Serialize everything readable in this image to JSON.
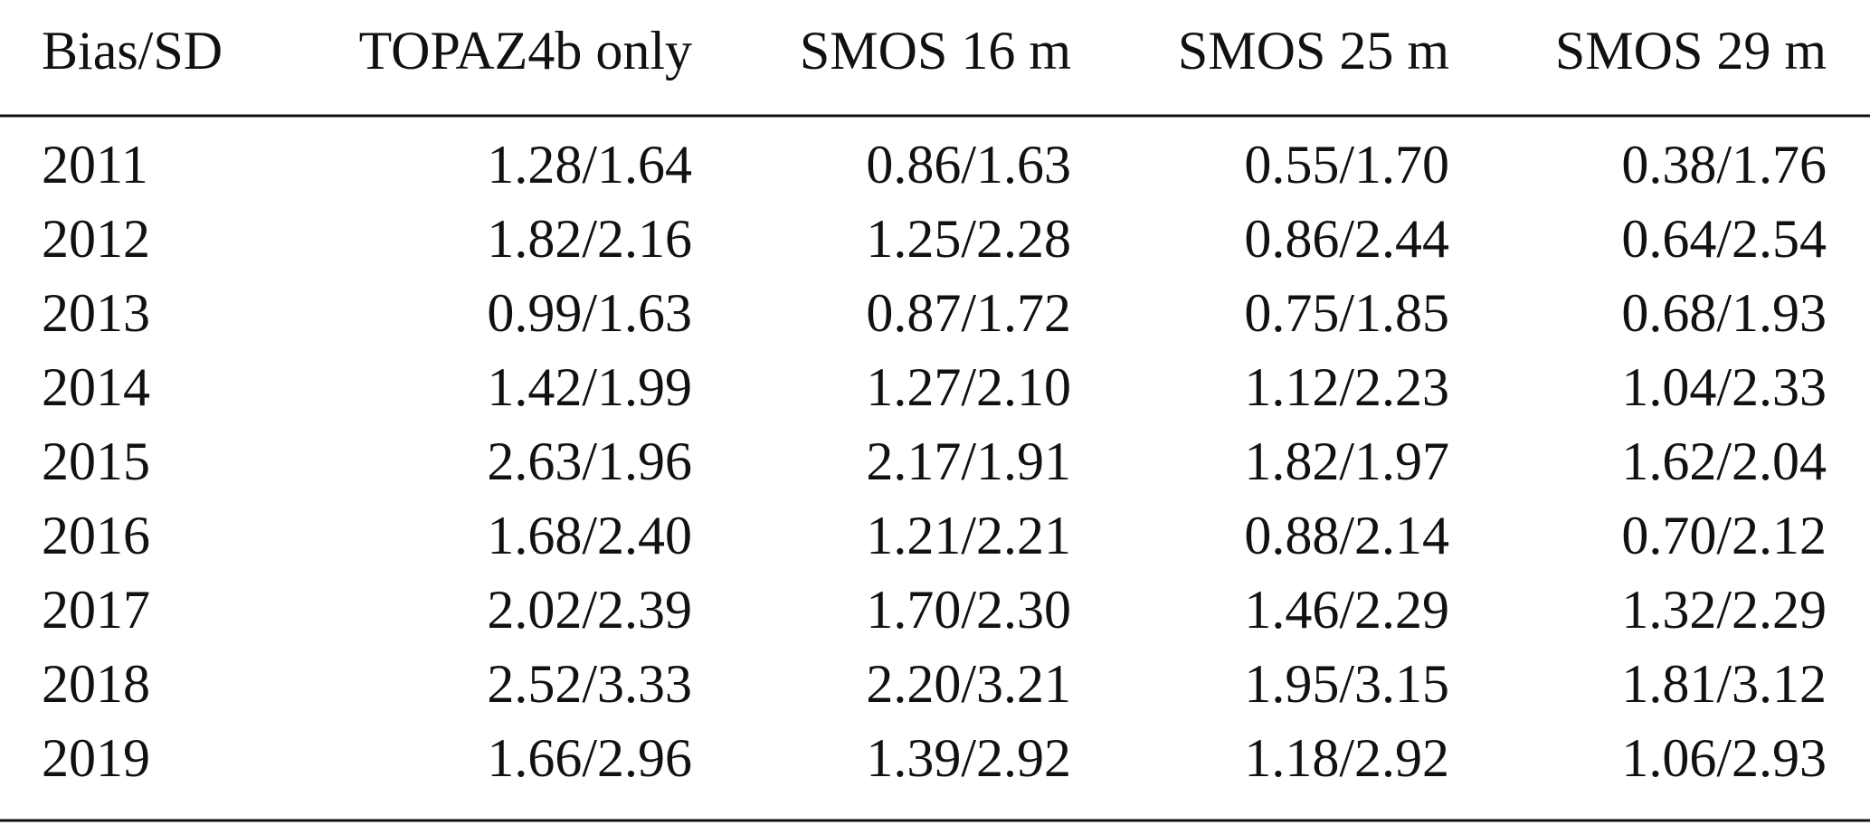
{
  "table": {
    "header": [
      "Bias/SD",
      "TOPAZ4b only",
      "SMOS 16 m",
      "SMOS 25 m",
      "SMOS 29 m"
    ],
    "rows": [
      [
        "2011",
        "1.28/1.64",
        "0.86/1.63",
        "0.55/1.70",
        "0.38/1.76"
      ],
      [
        "2012",
        "1.82/2.16",
        "1.25/2.28",
        "0.86/2.44",
        "0.64/2.54"
      ],
      [
        "2013",
        "0.99/1.63",
        "0.87/1.72",
        "0.75/1.85",
        "0.68/1.93"
      ],
      [
        "2014",
        "1.42/1.99",
        "1.27/2.10",
        "1.12/2.23",
        "1.04/2.33"
      ],
      [
        "2015",
        "2.63/1.96",
        "2.17/1.91",
        "1.82/1.97",
        "1.62/2.04"
      ],
      [
        "2016",
        "1.68/2.40",
        "1.21/2.21",
        "0.88/2.14",
        "0.70/2.12"
      ],
      [
        "2017",
        "2.02/2.39",
        "1.70/2.30",
        "1.46/2.29",
        "1.32/2.29"
      ],
      [
        "2018",
        "2.52/3.33",
        "2.20/3.21",
        "1.95/3.15",
        "1.81/3.12"
      ],
      [
        "2019",
        "1.66/2.96",
        "1.39/2.92",
        "1.18/2.92",
        "1.06/2.93"
      ]
    ]
  }
}
